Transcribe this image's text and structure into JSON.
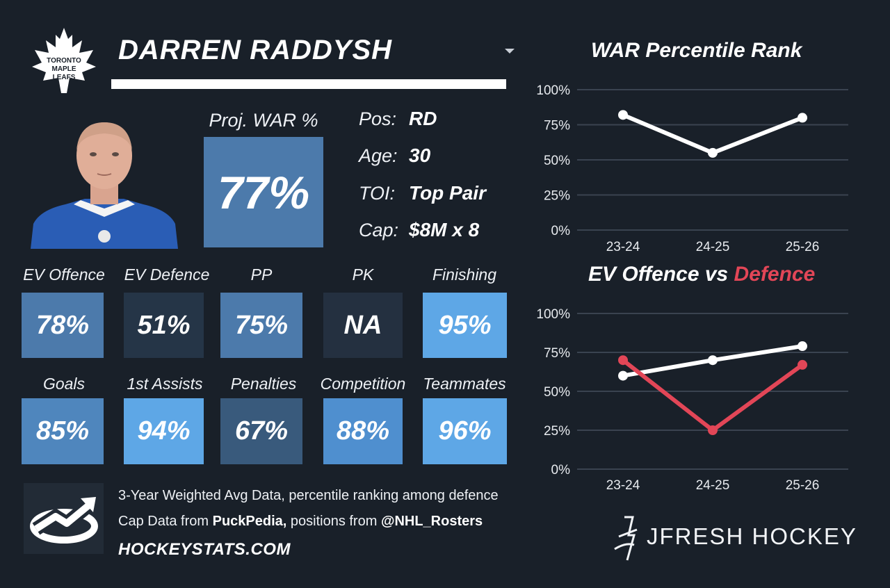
{
  "header": {
    "player_name": "DARREN RADDYSH"
  },
  "team_logo_text": [
    "TORONTO",
    "MAPLE",
    "LEAFS"
  ],
  "projection": {
    "label": "Proj. WAR %",
    "value": "77%",
    "color": "#4c7aab"
  },
  "info": [
    {
      "label": "Pos:",
      "value": "RD"
    },
    {
      "label": "Age:",
      "value": "30"
    },
    {
      "label": "TOI:",
      "value": "Top Pair"
    },
    {
      "label": "Cap:",
      "value": "$8M x 8"
    }
  ],
  "stats_row1": [
    {
      "label": "EV Offence",
      "value": "78%",
      "color": "#4c7aab"
    },
    {
      "label": "EV Defence",
      "value": "51%",
      "color": "#253547"
    },
    {
      "label": "PP",
      "value": "75%",
      "color": "#4c7aab"
    },
    {
      "label": "PK",
      "value": "NA",
      "color": "#243040"
    },
    {
      "label": "Finishing",
      "value": "95%",
      "color": "#5ea7e6"
    }
  ],
  "stats_row2": [
    {
      "label": "Goals",
      "value": "85%",
      "color": "#4f86bd"
    },
    {
      "label": "1st Assists",
      "value": "94%",
      "color": "#5ea7e6"
    },
    {
      "label": "Penalties",
      "value": "67%",
      "color": "#395a7c"
    },
    {
      "label": "Competition",
      "value": "88%",
      "color": "#4f8fcf"
    },
    {
      "label": "Teammates",
      "value": "96%",
      "color": "#5ea7e6"
    }
  ],
  "footer": {
    "line1": "3-Year Weighted Avg Data, percentile ranking among defence",
    "line2_prefix": "Cap Data from ",
    "line2_source": "PuckPedia,",
    "line2_mid": " positions from ",
    "line2_handle": "@NHL_Rosters",
    "site": "HOCKEYSTATS.COM",
    "brand": "JFRESH HOCKEY"
  },
  "chart_data": [
    {
      "type": "line",
      "title": "WAR Percentile Rank",
      "categories": [
        "23-24",
        "24-25",
        "25-26"
      ],
      "yticks": [
        "100%",
        "75%",
        "50%",
        "25%",
        "0%"
      ],
      "ylim": [
        0,
        100
      ],
      "grid": true,
      "series": [
        {
          "values": [
            82,
            55,
            80
          ],
          "color": "#ffffff"
        }
      ]
    },
    {
      "type": "line",
      "title_part1": "EV Offence vs ",
      "title_part2": "Defence",
      "title_part2_color": "#e24657",
      "categories": [
        "23-24",
        "24-25",
        "25-26"
      ],
      "yticks": [
        "100%",
        "75%",
        "50%",
        "25%",
        "0%"
      ],
      "ylim": [
        0,
        100
      ],
      "grid": true,
      "series": [
        {
          "values": [
            60,
            70,
            79
          ],
          "color": "#ffffff"
        },
        {
          "values": [
            70,
            25,
            67
          ],
          "color": "#e24657"
        }
      ]
    }
  ]
}
